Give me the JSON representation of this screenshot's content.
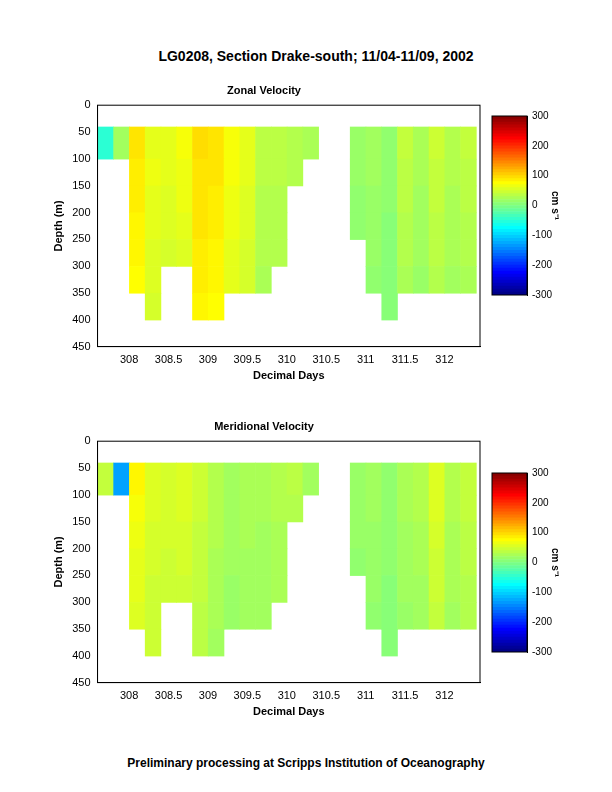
{
  "title": "LG0208, Section Drake-south; 11/04-11/09, 2002",
  "footnote": "Preliminary processing at Scripps Institution of Oceanography",
  "chart_data": [
    {
      "type": "heatmap",
      "title": "Zonal Velocity",
      "x_label": "Decimal Days",
      "y_label": "Depth (m)",
      "xlim": [
        307.6,
        312.45
      ],
      "xticks": [
        308,
        308.5,
        309,
        309.5,
        310,
        310.5,
        311,
        311.5,
        312
      ],
      "ylim": [
        450,
        0
      ],
      "yticks": [
        0,
        50,
        100,
        150,
        200,
        250,
        300,
        350,
        400,
        450
      ],
      "grid": false,
      "x_edges": [
        307.6,
        307.8,
        308.0,
        308.2,
        308.4,
        308.6,
        308.8,
        309.0,
        309.2,
        309.4,
        309.6,
        309.8,
        310.0,
        310.2,
        310.4,
        310.6,
        310.8,
        311.0,
        311.2,
        311.4,
        311.6,
        311.8,
        312.0,
        312.2,
        312.4
      ],
      "y_edges": [
        40,
        100,
        150,
        200,
        250,
        300,
        350,
        400
      ],
      "cells": [
        [
          -50,
          20,
          90,
          60,
          60,
          70,
          95,
          90,
          70,
          60,
          35,
          35,
          30,
          25,
          null,
          null,
          15,
          20,
          10,
          40,
          25,
          45,
          30,
          40
        ],
        [
          null,
          null,
          85,
          65,
          60,
          65,
          90,
          90,
          70,
          60,
          35,
          35,
          30,
          null,
          null,
          null,
          15,
          20,
          10,
          35,
          25,
          40,
          30,
          35
        ],
        [
          null,
          null,
          85,
          60,
          55,
          65,
          90,
          85,
          65,
          55,
          30,
          30,
          null,
          null,
          null,
          null,
          10,
          15,
          10,
          35,
          20,
          40,
          25,
          35
        ],
        [
          null,
          null,
          80,
          60,
          55,
          60,
          90,
          85,
          65,
          55,
          30,
          30,
          null,
          null,
          null,
          null,
          10,
          15,
          5,
          30,
          20,
          35,
          25,
          30
        ],
        [
          null,
          null,
          80,
          55,
          50,
          55,
          85,
          80,
          60,
          50,
          30,
          30,
          null,
          null,
          null,
          null,
          null,
          15,
          5,
          30,
          20,
          35,
          25,
          30
        ],
        [
          null,
          null,
          75,
          55,
          null,
          null,
          85,
          80,
          60,
          50,
          25,
          null,
          null,
          null,
          null,
          null,
          null,
          10,
          5,
          25,
          15,
          30,
          20,
          25
        ],
        [
          null,
          null,
          null,
          50,
          null,
          null,
          80,
          75,
          null,
          null,
          null,
          null,
          null,
          null,
          null,
          null,
          null,
          null,
          5,
          null,
          null,
          null,
          null,
          null
        ]
      ],
      "colorbar": {
        "range": [
          -300,
          300
        ],
        "ticks": [
          -300,
          -200,
          -100,
          0,
          100,
          200,
          300
        ],
        "label": "cm s⁻¹"
      }
    },
    {
      "type": "heatmap",
      "title": "Meridional Velocity",
      "x_label": "Decimal Days",
      "y_label": "Depth (m)",
      "xlim": [
        307.6,
        312.45
      ],
      "xticks": [
        308,
        308.5,
        309,
        309.5,
        310,
        310.5,
        311,
        311.5,
        312
      ],
      "ylim": [
        450,
        0
      ],
      "yticks": [
        0,
        50,
        100,
        150,
        200,
        250,
        300,
        350,
        400,
        450
      ],
      "grid": false,
      "x_edges": [
        307.6,
        307.8,
        308.0,
        308.2,
        308.4,
        308.6,
        308.8,
        309.0,
        309.2,
        309.4,
        309.6,
        309.8,
        310.0,
        310.2,
        310.4,
        310.6,
        310.8,
        311.0,
        311.2,
        311.4,
        311.6,
        311.8,
        312.0,
        312.2,
        312.4
      ],
      "y_edges": [
        40,
        100,
        150,
        200,
        250,
        300,
        350,
        400
      ],
      "cells": [
        [
          40,
          -130,
          80,
          55,
          50,
          55,
          45,
          30,
          20,
          25,
          25,
          30,
          35,
          20,
          null,
          null,
          15,
          20,
          10,
          25,
          30,
          55,
          30,
          40
        ],
        [
          null,
          null,
          70,
          55,
          50,
          55,
          45,
          30,
          20,
          25,
          25,
          30,
          30,
          null,
          null,
          null,
          15,
          20,
          10,
          25,
          30,
          55,
          30,
          40
        ],
        [
          null,
          null,
          65,
          50,
          50,
          50,
          40,
          30,
          20,
          25,
          20,
          25,
          null,
          null,
          null,
          null,
          15,
          15,
          10,
          20,
          25,
          50,
          25,
          35
        ],
        [
          null,
          null,
          60,
          50,
          45,
          50,
          40,
          25,
          20,
          20,
          20,
          25,
          null,
          null,
          null,
          null,
          10,
          15,
          10,
          20,
          25,
          45,
          25,
          35
        ],
        [
          null,
          null,
          60,
          45,
          45,
          45,
          40,
          25,
          15,
          20,
          20,
          25,
          null,
          null,
          null,
          null,
          null,
          15,
          5,
          20,
          20,
          45,
          25,
          30
        ],
        [
          null,
          null,
          55,
          45,
          null,
          null,
          35,
          25,
          15,
          20,
          20,
          null,
          null,
          null,
          null,
          null,
          null,
          10,
          5,
          15,
          20,
          40,
          20,
          30
        ],
        [
          null,
          null,
          null,
          45,
          null,
          null,
          35,
          20,
          null,
          null,
          null,
          null,
          null,
          null,
          null,
          null,
          null,
          null,
          5,
          null,
          null,
          null,
          null,
          null
        ]
      ],
      "colorbar": {
        "range": [
          -300,
          300
        ],
        "ticks": [
          -300,
          -200,
          -100,
          0,
          100,
          200,
          300
        ],
        "label": "cm s⁻¹"
      }
    }
  ]
}
